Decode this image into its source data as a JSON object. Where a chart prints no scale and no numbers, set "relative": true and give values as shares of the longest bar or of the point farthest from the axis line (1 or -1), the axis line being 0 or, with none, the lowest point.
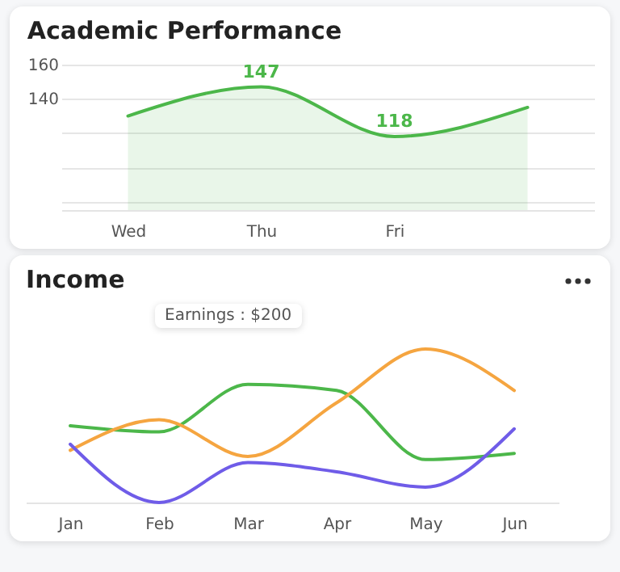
{
  "chart_data": [
    {
      "type": "area",
      "title": "Academic Performance",
      "categories": [
        "Wed",
        "Thu",
        "Fri",
        null
      ],
      "values": [
        130,
        147,
        118,
        135
      ],
      "color": "#4cb74a",
      "value_labels": [
        null,
        "147",
        "118",
        null
      ],
      "ylim": [
        75,
        160
      ],
      "yticks": [
        {
          "value": 80,
          "label": null
        },
        {
          "value": 100,
          "label": null
        },
        {
          "value": 120,
          "label": null
        },
        140,
        160
      ],
      "grid": "y"
    },
    {
      "type": "line",
      "title": "Income",
      "relative": true,
      "categories": [
        "Jan",
        "Feb",
        "Mar",
        "Apr",
        "May",
        "Jun"
      ],
      "annotations": [
        "Earnings : $200"
      ],
      "series": [
        {
          "color": "#4cb74a",
          "values": [
            0.5,
            0.46,
            0.77,
            0.73,
            0.28,
            0.32
          ]
        },
        {
          "color": "#f5a540",
          "values": [
            0.34,
            0.54,
            0.3,
            0.65,
            1.0,
            0.73
          ]
        },
        {
          "color": "#6f5ce8",
          "values": [
            0.38,
            0.0,
            0.26,
            0.2,
            0.1,
            0.48
          ]
        }
      ]
    }
  ]
}
